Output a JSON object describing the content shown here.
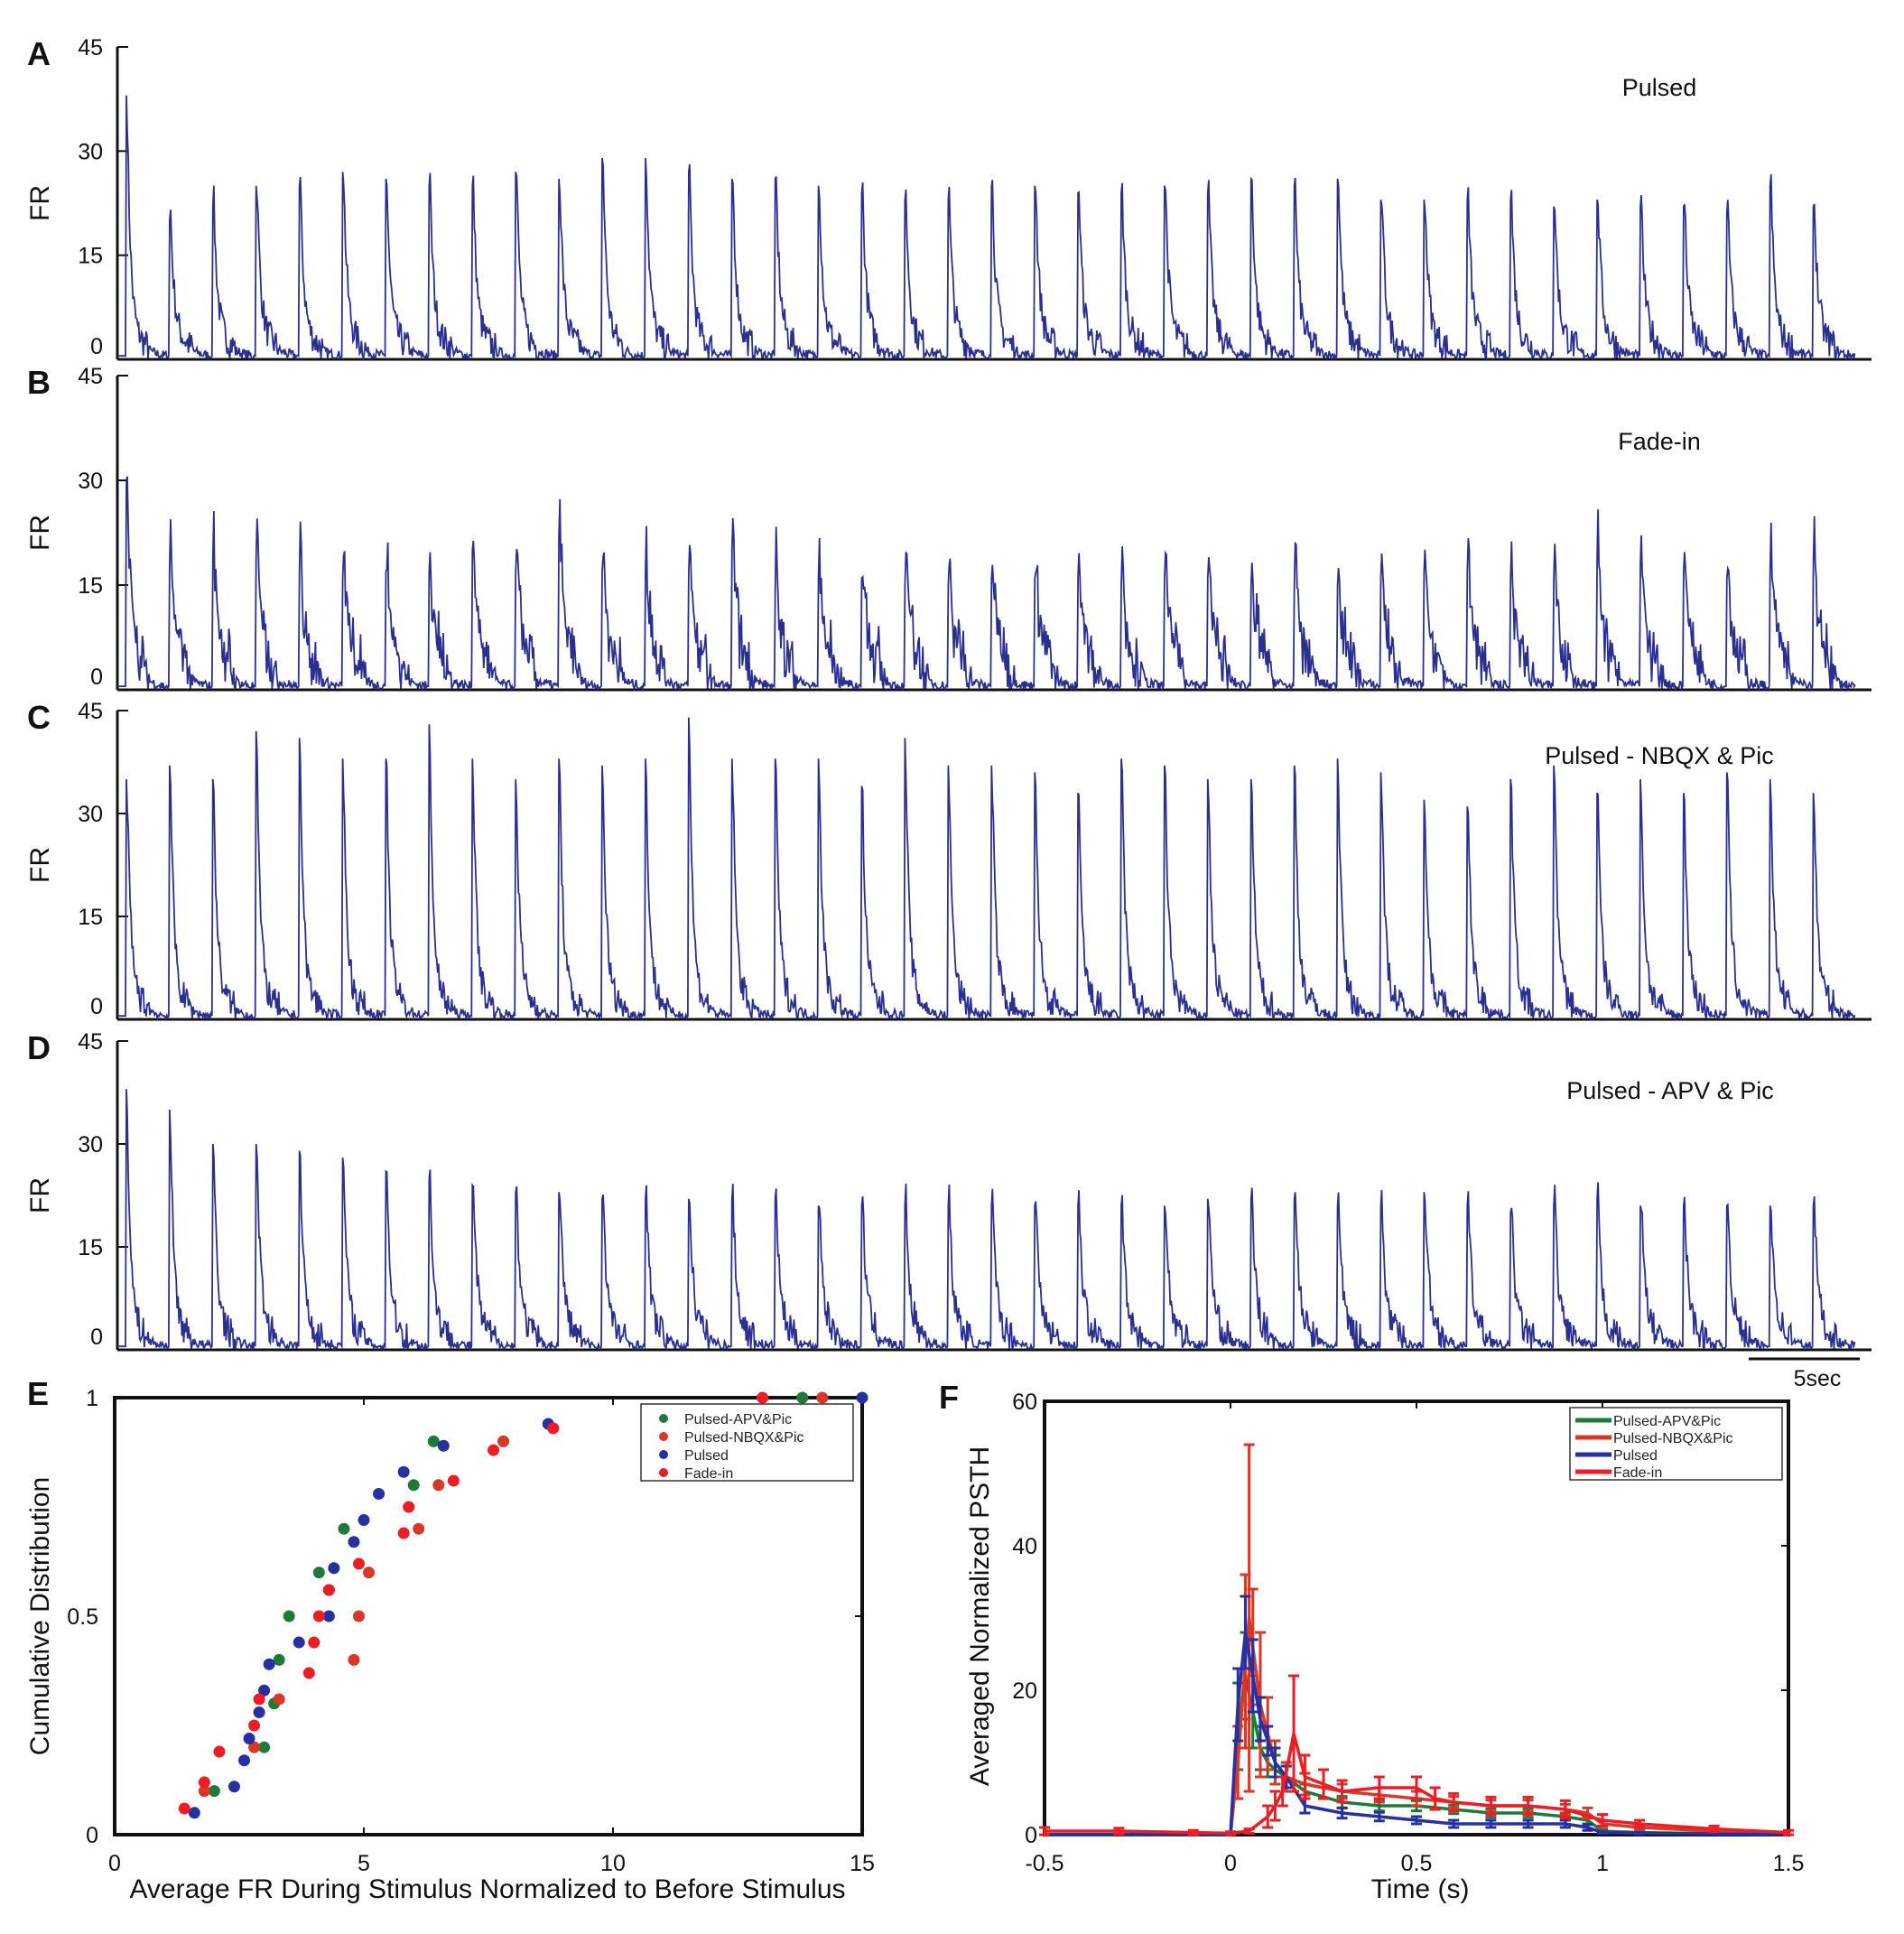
{
  "colors": {
    "trace": "#2b2f8f",
    "green": "#1f7a3a",
    "orange_red": "#d8382a",
    "blue": "#2630a0",
    "red": "#ee1c24"
  },
  "chart_data": [
    {
      "type": "line",
      "panel": "A",
      "title": "Pulsed",
      "ylabel": "FR",
      "ylim": [
        0,
        45
      ],
      "yticks": [
        "0",
        "15",
        "30",
        "45"
      ],
      "peaks": [
        38,
        20,
        22,
        25,
        25,
        27,
        26,
        25,
        25,
        27,
        26,
        29,
        29,
        27,
        26,
        26,
        25,
        24,
        23,
        23,
        25,
        25,
        24,
        24,
        25,
        24,
        26,
        25,
        26,
        23,
        23,
        23,
        23,
        22,
        23,
        22,
        22,
        21,
        25,
        22
      ]
    },
    {
      "type": "line",
      "panel": "B",
      "title": "Fade-in",
      "ylabel": "FR",
      "ylim": [
        0,
        45
      ],
      "yticks": [
        "0",
        "15",
        "30",
        "45"
      ],
      "peaks": [
        30,
        18,
        19,
        19,
        17,
        16,
        17,
        17,
        20,
        17,
        22,
        17,
        17,
        17,
        20,
        14,
        16,
        16,
        15,
        15,
        16,
        16,
        16,
        15,
        16,
        16,
        15,
        15,
        15,
        16,
        17,
        17,
        16,
        16,
        19,
        18,
        17,
        16,
        17,
        18
      ]
    },
    {
      "type": "line",
      "panel": "C",
      "title": "Pulsed - NBQX & Pic",
      "ylabel": "FR",
      "ylim": [
        0,
        45
      ],
      "yticks": [
        "0",
        "15",
        "30",
        "45"
      ],
      "peaks": [
        35,
        37,
        35,
        42,
        41,
        38,
        38,
        43,
        38,
        35,
        38,
        37,
        38,
        44,
        38,
        38,
        38,
        34,
        41,
        37,
        37,
        36,
        33,
        38,
        37,
        35,
        35,
        37,
        38,
        36,
        32,
        31,
        35,
        37,
        33,
        35,
        33,
        36,
        35,
        33
      ]
    },
    {
      "type": "line",
      "panel": "D",
      "title": "Pulsed - APV & Pic",
      "ylabel": "FR",
      "ylim": [
        0,
        45
      ],
      "yticks": [
        "0",
        "15",
        "30",
        "45"
      ],
      "peaks": [
        38,
        35,
        30,
        30,
        29,
        28,
        26,
        25,
        24,
        23,
        23,
        22,
        22,
        22,
        22,
        22,
        21,
        21,
        21,
        21,
        21,
        21,
        21,
        21,
        21,
        22,
        22,
        22,
        21,
        21,
        23,
        21,
        20,
        21,
        22,
        21,
        21,
        21,
        21,
        21
      ],
      "scalebar_label": "5sec"
    },
    {
      "type": "scatter",
      "panel": "E",
      "xlabel": "Average FR During Stimulus Normalized to Before Stimulus",
      "ylabel": "Cumulative Distribution",
      "xlim": [
        0,
        15
      ],
      "ylim": [
        0,
        1
      ],
      "xticks": [
        "0",
        "5",
        "10",
        "15"
      ],
      "yticks": [
        "0",
        "0.5",
        "1"
      ],
      "legend": "top-right",
      "series": [
        {
          "name": "Pulsed-APV&Pic",
          "color": "#1f7a3a",
          "points": [
            [
              13.8,
              1
            ],
            [
              6.4,
              0.9
            ],
            [
              6.0,
              0.8
            ],
            [
              4.6,
              0.7
            ],
            [
              4.1,
              0.6
            ],
            [
              3.5,
              0.5
            ],
            [
              3.3,
              0.4
            ],
            [
              3.2,
              0.3
            ],
            [
              3.0,
              0.2
            ],
            [
              2.0,
              0.1
            ]
          ]
        },
        {
          "name": "Pulsed-NBQX&Pic",
          "color": "#d8382a",
          "points": [
            [
              14.2,
              1
            ],
            [
              7.8,
              0.9
            ],
            [
              6.5,
              0.8
            ],
            [
              6.1,
              0.7
            ],
            [
              5.1,
              0.6
            ],
            [
              4.9,
              0.5
            ],
            [
              4.8,
              0.4
            ],
            [
              3.3,
              0.31
            ],
            [
              2.8,
              0.2
            ],
            [
              1.8,
              0.1
            ]
          ]
        },
        {
          "name": "Pulsed",
          "color": "#2630a0",
          "points": [
            [
              15,
              1
            ],
            [
              8.7,
              0.94
            ],
            [
              6.6,
              0.89
            ],
            [
              5.8,
              0.83
            ],
            [
              5.3,
              0.78
            ],
            [
              5.0,
              0.72
            ],
            [
              4.8,
              0.67
            ],
            [
              4.4,
              0.61
            ],
            [
              4.3,
              0.56
            ],
            [
              4.3,
              0.5
            ],
            [
              3.7,
              0.44
            ],
            [
              3.1,
              0.39
            ],
            [
              3.0,
              0.33
            ],
            [
              2.9,
              0.28
            ],
            [
              2.7,
              0.22
            ],
            [
              2.6,
              0.17
            ],
            [
              2.4,
              0.11
            ],
            [
              1.6,
              0.05
            ]
          ]
        },
        {
          "name": "Fade-in",
          "color": "#ee1c24",
          "points": [
            [
              13,
              1
            ],
            [
              8.8,
              0.93
            ],
            [
              7.6,
              0.88
            ],
            [
              6.8,
              0.81
            ],
            [
              5.9,
              0.75
            ],
            [
              5.8,
              0.69
            ],
            [
              4.9,
              0.62
            ],
            [
              4.3,
              0.56
            ],
            [
              4.1,
              0.5
            ],
            [
              4.0,
              0.44
            ],
            [
              3.9,
              0.37
            ],
            [
              2.9,
              0.31
            ],
            [
              2.8,
              0.25
            ],
            [
              2.1,
              0.19
            ],
            [
              1.8,
              0.12
            ],
            [
              1.4,
              0.06
            ]
          ]
        }
      ]
    },
    {
      "type": "line",
      "panel": "F",
      "xlabel": "Time (s)",
      "ylabel": "Averaged Normalized PSTH",
      "xlim": [
        -0.5,
        1.5
      ],
      "ylim": [
        0,
        60
      ],
      "xticks": [
        "-0.5",
        "0",
        "0.5",
        "1",
        "1.5"
      ],
      "yticks": [
        "0",
        "20",
        "40",
        "60"
      ],
      "legend": "top-right",
      "series": [
        {
          "name": "Pulsed-APV&Pic",
          "color": "#1f7a3a",
          "x": [
            -0.5,
            0,
            0.02,
            0.04,
            0.06,
            0.08,
            0.1,
            0.12,
            0.15,
            0.2,
            0.3,
            0.4,
            0.5,
            0.6,
            0.7,
            0.8,
            0.9,
            0.96,
            1.0,
            1.1,
            1.5
          ],
          "y": [
            0,
            0,
            15,
            22,
            17,
            12,
            10,
            9,
            8,
            6,
            4.5,
            4,
            4,
            3.5,
            3,
            3,
            2.5,
            2,
            0.5,
            0.3,
            0
          ],
          "err": [
            0,
            0,
            6,
            6,
            5,
            3,
            2,
            2,
            1.5,
            1,
            0.8,
            0.7,
            0.7,
            0.6,
            0.6,
            0.6,
            0.5,
            0.5,
            0.2,
            0.1,
            0
          ]
        },
        {
          "name": "Pulsed-NBQX&Pic",
          "color": "#d8382a",
          "x": [
            -0.5,
            0,
            0.02,
            0.04,
            0.05,
            0.06,
            0.08,
            0.1,
            0.12,
            0.15,
            0.2,
            0.3,
            0.4,
            0.5,
            0.6,
            0.7,
            0.8,
            0.9,
            0.96,
            1.0,
            1.1,
            1.5
          ],
          "y": [
            0,
            0,
            10,
            24,
            30,
            26,
            18,
            14,
            10,
            8,
            7,
            6,
            5.5,
            5,
            4.5,
            4,
            4,
            3.5,
            3,
            1.5,
            1,
            0
          ],
          "err": [
            0,
            0,
            5,
            12,
            24,
            8,
            10,
            5,
            3,
            2,
            1.5,
            1,
            1,
            1,
            0.8,
            0.8,
            0.8,
            0.7,
            0.7,
            0.4,
            0.3,
            0
          ]
        },
        {
          "name": "Pulsed",
          "color": "#2630a0",
          "x": [
            -0.5,
            0,
            0.02,
            0.04,
            0.06,
            0.08,
            0.1,
            0.12,
            0.15,
            0.2,
            0.3,
            0.4,
            0.5,
            0.6,
            0.7,
            0.8,
            0.9,
            0.96,
            1.0,
            1.1,
            1.5
          ],
          "y": [
            0,
            0,
            18,
            28,
            22,
            16,
            13,
            10,
            8,
            4,
            3,
            2.5,
            2,
            1.5,
            1.5,
            1.5,
            1.5,
            1,
            0.3,
            0.2,
            0
          ],
          "err": [
            0,
            0,
            5,
            5,
            5,
            3,
            2,
            2,
            1.5,
            1,
            0.7,
            0.6,
            0.5,
            0.5,
            0.5,
            0.5,
            0.5,
            0.4,
            0.1,
            0.1,
            0
          ]
        },
        {
          "name": "Fade-in",
          "color": "#ee1c24",
          "x": [
            -0.5,
            -0.3,
            -0.1,
            0,
            0.05,
            0.1,
            0.12,
            0.14,
            0.17,
            0.2,
            0.25,
            0.3,
            0.4,
            0.5,
            0.55,
            0.6,
            0.7,
            0.8,
            0.9,
            1.0,
            1.1,
            1.3,
            1.5
          ],
          "y": [
            0.5,
            0.5,
            0.3,
            0.2,
            0.5,
            2.5,
            4,
            6,
            14,
            8,
            7,
            6,
            6.5,
            6.5,
            5,
            4.5,
            4,
            4,
            3.5,
            2,
            1.5,
            0.8,
            0.3
          ],
          "err": [
            0.5,
            0.4,
            0.3,
            0.2,
            0.3,
            1.5,
            2,
            2,
            8,
            3,
            2,
            1.5,
            1.5,
            1.5,
            1.5,
            1.2,
            1.2,
            1.2,
            1.2,
            0.8,
            0.5,
            0.4,
            0.3
          ]
        }
      ]
    }
  ]
}
